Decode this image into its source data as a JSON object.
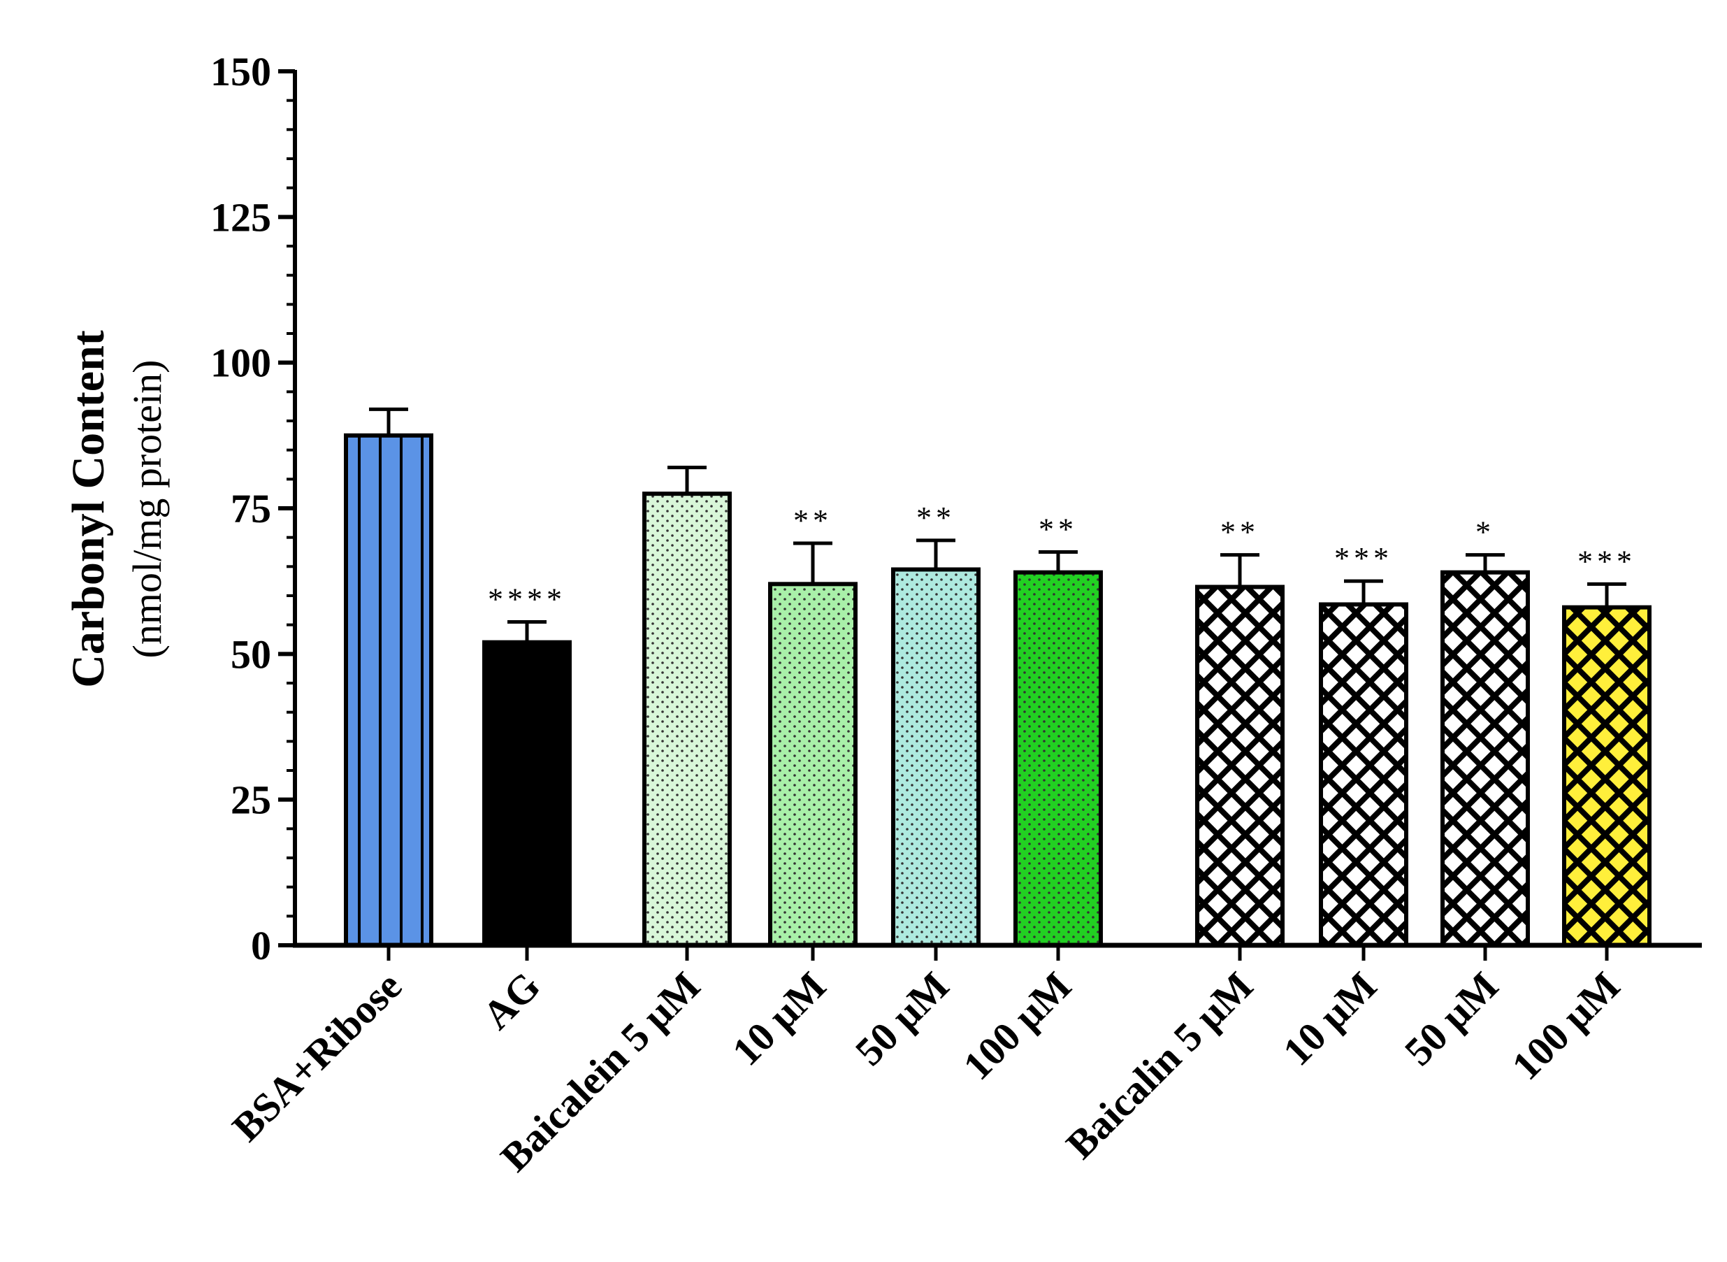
{
  "chart_data": {
    "type": "bar",
    "title": "",
    "xlabel": "",
    "ylabel": "Carbonyl Content",
    "ylabel_sub": "(nmol/mg protein)",
    "ylim": [
      0,
      150
    ],
    "yticks": [
      0,
      25,
      50,
      75,
      100,
      125,
      150
    ],
    "categories": [
      "BSA+Ribose",
      "AG",
      "Baicalein 5 μM",
      "10 μM",
      "50 μM",
      "100 μM",
      "Baicalin 5 μM",
      "10 μM",
      "50 μM",
      "100 μM"
    ],
    "values": [
      87.5,
      52,
      77.5,
      62,
      64.5,
      64,
      61.5,
      58.5,
      64,
      58
    ],
    "errors": [
      4.5,
      3.5,
      4.5,
      7,
      5,
      3.5,
      5.5,
      4,
      3,
      4
    ],
    "significance": [
      "",
      "****",
      "",
      "**",
      "**",
      "**",
      "**",
      "***",
      "*",
      "***"
    ],
    "colors": [
      "#5b93e6",
      "#000000",
      "#d9f7d9",
      "#a9f0a9",
      "#aeeadf",
      "#22d022",
      "#ffffff",
      "#ffffff",
      "#ffffff",
      "#ffef3b"
    ],
    "patterns": [
      "vertical-lines",
      "solid",
      "dots",
      "dots",
      "dots",
      "dots",
      "crosshatch",
      "crosshatch",
      "crosshatch",
      "crosshatch"
    ],
    "grid": false,
    "legend": "none"
  }
}
